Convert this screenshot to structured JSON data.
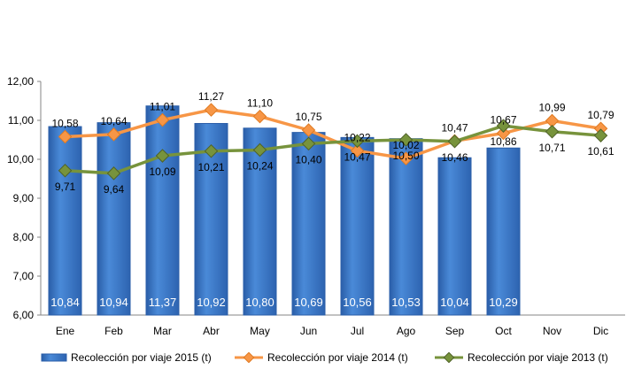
{
  "chart_data": {
    "type": "bar",
    "categories": [
      "Ene",
      "Feb",
      "Mar",
      "Abr",
      "May",
      "Jun",
      "Jul",
      "Ago",
      "Sep",
      "Oct",
      "Nov",
      "Dic"
    ],
    "ylim": [
      6,
      12
    ],
    "yticks": [
      "6,00",
      "7,00",
      "8,00",
      "9,00",
      "10,00",
      "11,00",
      "12,00"
    ],
    "grid": false,
    "legend_position": "bottom",
    "series": [
      {
        "name": "Recolección por viaje 2015 (t)",
        "type": "bar",
        "color": "#3c78c8",
        "values": [
          10.84,
          10.94,
          11.37,
          10.92,
          10.8,
          10.69,
          10.56,
          10.53,
          10.04,
          10.29,
          null,
          null
        ],
        "labels": [
          "10,84",
          "10,94",
          "11,37",
          "10,92",
          "10,80",
          "10,69",
          "10,56",
          "10,53",
          "10,04",
          "10,29",
          "",
          ""
        ]
      },
      {
        "name": "Recolección por viaje 2014 (t)",
        "type": "line",
        "color": "#f79646",
        "values": [
          10.58,
          10.64,
          11.01,
          11.27,
          11.1,
          10.75,
          10.22,
          10.02,
          10.47,
          10.67,
          10.99,
          10.79
        ],
        "labels": [
          "10,58",
          "10,64",
          "11,01",
          "11,27",
          "11,10",
          "10,75",
          "10,22",
          "10,02",
          "10,47",
          "10,67",
          "10,99",
          "10,79"
        ]
      },
      {
        "name": "Recolección por viaje 2013 (t)",
        "type": "line",
        "color": "#77933c",
        "values": [
          9.71,
          9.64,
          10.09,
          10.21,
          10.24,
          10.4,
          10.47,
          10.5,
          10.46,
          10.86,
          10.71,
          10.61
        ],
        "labels": [
          "9,71",
          "9,64",
          "10,09",
          "10,21",
          "10,24",
          "10,40",
          "10,47",
          "10,50",
          "10,46",
          "10,86",
          "10,71",
          "10,61"
        ]
      }
    ]
  }
}
